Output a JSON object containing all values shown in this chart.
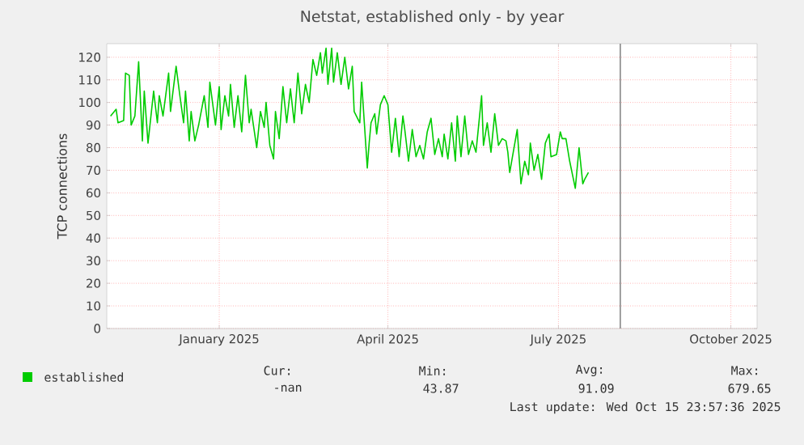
{
  "chart_data": {
    "type": "line",
    "title": "Netstat, established only - by year",
    "ylabel": "TCP connections",
    "xlim": [
      "2024-11-02",
      "2025-10-15"
    ],
    "ylim": [
      0,
      126
    ],
    "xticks": [
      {
        "value": "2025-01-01",
        "label": "January 2025"
      },
      {
        "value": "2025-04-01",
        "label": "April 2025"
      },
      {
        "value": "2025-07-01",
        "label": "July 2025"
      },
      {
        "value": "2025-10-01",
        "label": "October 2025"
      }
    ],
    "yticks": [
      0,
      10,
      20,
      30,
      40,
      50,
      60,
      70,
      80,
      90,
      100,
      110,
      120
    ],
    "grid": true,
    "legend": "bottom",
    "ref_lines": [
      {
        "axis": "x",
        "value": "2025-08-03",
        "color": "#888888"
      }
    ],
    "annotations": [
      "Cur:",
      "-nan",
      "Min:",
      "43.87",
      "Avg:",
      "91.09",
      "Max:",
      "679.65",
      "Last update: Wed Oct 15 23:57:36 2025"
    ],
    "series": [
      {
        "name": "established",
        "color": "#00cc00",
        "x": [
          "2024-11-04",
          "2024-11-07",
          "2024-11-08",
          "2024-11-11",
          "2024-11-12",
          "2024-11-14",
          "2024-11-15",
          "2024-11-17",
          "2024-11-19",
          "2024-11-21",
          "2024-11-22",
          "2024-11-24",
          "2024-11-27",
          "2024-11-29",
          "2024-11-30",
          "2024-12-02",
          "2024-12-05",
          "2024-12-06",
          "2024-12-09",
          "2024-12-11",
          "2024-12-13",
          "2024-12-14",
          "2024-12-16",
          "2024-12-17",
          "2024-12-19",
          "2024-12-21",
          "2024-12-24",
          "2024-12-26",
          "2024-12-27",
          "2024-12-30",
          "2025-01-01",
          "2025-01-02",
          "2025-01-04",
          "2025-01-06",
          "2025-01-07",
          "2025-01-09",
          "2025-01-11",
          "2025-01-13",
          "2025-01-15",
          "2025-01-17",
          "2025-01-18",
          "2025-01-21",
          "2025-01-23",
          "2025-01-25",
          "2025-01-26",
          "2025-01-28",
          "2025-01-30",
          "2025-01-31",
          "2025-02-02",
          "2025-02-04",
          "2025-02-06",
          "2025-02-08",
          "2025-02-10",
          "2025-02-12",
          "2025-02-14",
          "2025-02-16",
          "2025-02-18",
          "2025-02-20",
          "2025-02-22",
          "2025-02-24",
          "2025-02-25",
          "2025-02-27",
          "2025-02-28",
          "2025-03-02",
          "2025-03-03",
          "2025-03-05",
          "2025-03-07",
          "2025-03-09",
          "2025-03-11",
          "2025-03-13",
          "2025-03-14",
          "2025-03-17",
          "2025-03-18",
          "2025-03-21",
          "2025-03-22",
          "2025-03-23",
          "2025-03-25",
          "2025-03-26",
          "2025-03-28",
          "2025-03-30",
          "2025-04-01",
          "2025-04-03",
          "2025-04-05",
          "2025-04-07",
          "2025-04-09",
          "2025-04-10",
          "2025-04-12",
          "2025-04-14",
          "2025-04-16",
          "2025-04-18",
          "2025-04-20",
          "2025-04-22",
          "2025-04-24",
          "2025-04-26",
          "2025-04-28",
          "2025-04-30",
          "2025-05-01",
          "2025-05-03",
          "2025-05-05",
          "2025-05-07",
          "2025-05-08",
          "2025-05-10",
          "2025-05-12",
          "2025-05-14",
          "2025-05-16",
          "2025-05-18",
          "2025-05-21",
          "2025-05-22",
          "2025-05-24",
          "2025-05-26",
          "2025-05-28",
          "2025-05-30",
          "2025-06-01",
          "2025-06-03",
          "2025-06-04",
          "2025-06-05",
          "2025-06-09",
          "2025-06-11",
          "2025-06-13",
          "2025-06-15",
          "2025-06-16",
          "2025-06-18",
          "2025-06-20",
          "2025-06-22",
          "2025-06-24",
          "2025-06-26",
          "2025-06-27",
          "2025-06-30",
          "2025-07-02",
          "2025-07-03",
          "2025-07-05",
          "2025-07-07",
          "2025-07-10",
          "2025-07-12",
          "2025-07-14",
          "2025-07-15",
          "2025-07-17"
        ],
        "values": [
          94,
          97,
          91,
          92,
          113,
          112,
          90,
          94,
          118,
          83,
          105,
          82,
          105,
          91,
          103,
          94,
          113,
          96,
          116,
          103,
          91,
          105,
          83,
          96,
          83,
          90,
          103,
          89,
          109,
          90,
          107,
          88,
          103,
          94,
          108,
          89,
          103,
          87,
          112,
          91,
          97,
          80,
          96,
          89,
          100,
          81,
          75,
          96,
          84,
          107,
          91,
          106,
          91,
          113,
          95,
          108,
          100,
          119,
          112,
          122,
          113,
          124,
          108,
          124,
          109,
          122,
          108,
          120,
          106,
          116,
          96,
          91,
          109,
          71,
          82,
          91,
          95,
          86,
          99,
          103,
          99,
          78,
          93,
          76,
          94,
          88,
          74,
          88,
          76,
          81,
          75,
          87,
          93,
          77,
          84,
          76,
          86,
          75,
          91,
          74,
          94,
          76,
          94,
          77,
          83,
          78,
          103,
          81,
          91,
          78,
          95,
          81,
          84,
          83,
          78,
          69,
          88,
          64,
          74,
          68,
          82,
          70,
          77,
          66,
          82,
          86,
          76,
          77,
          87,
          84,
          84,
          74,
          62,
          80,
          64,
          66,
          69
        ]
      }
    ]
  }
}
